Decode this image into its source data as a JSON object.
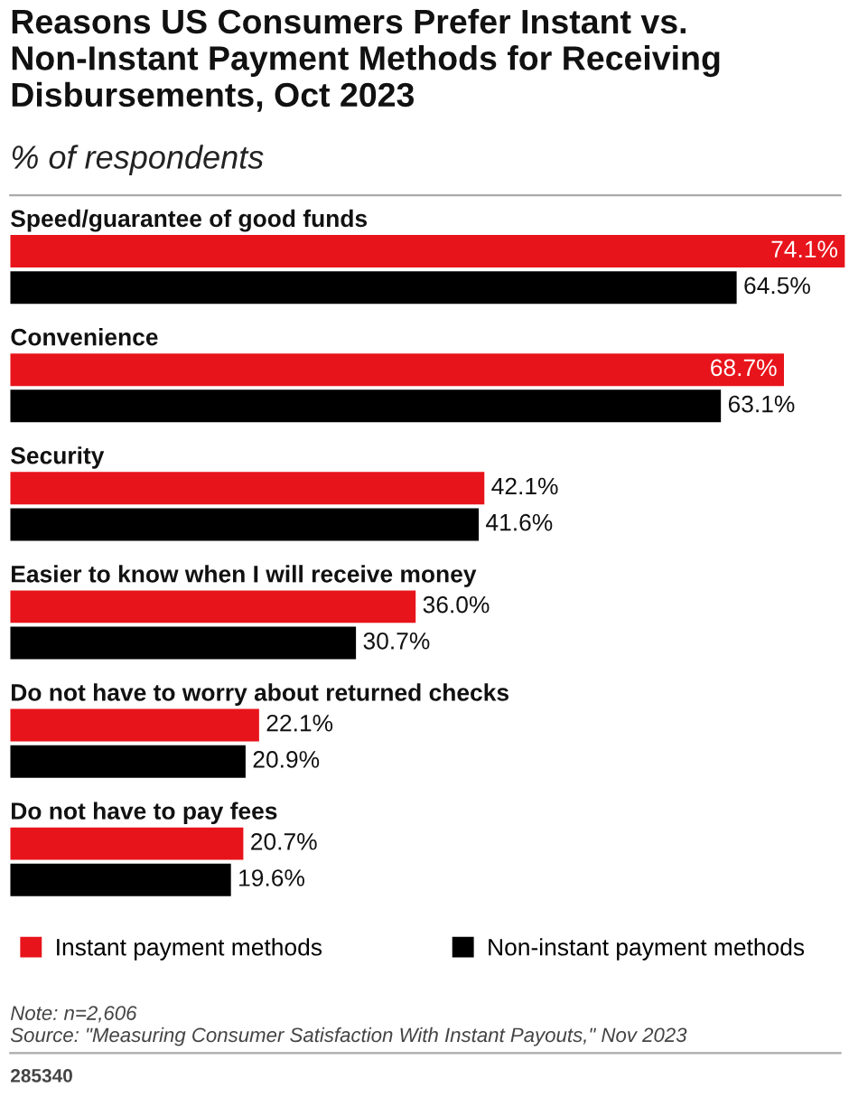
{
  "chart_data": {
    "type": "bar",
    "orientation": "horizontal",
    "title": "Reasons US Consumers Prefer Instant vs. Non-Instant Payment Methods for Receiving Disbursements, Oct 2023",
    "subtitle": "% of respondents",
    "categories": [
      "Speed/guarantee of good funds",
      "Convenience",
      "Security",
      "Easier to know when I will receive money",
      "Do not have to worry about returned checks",
      "Do not have to pay fees"
    ],
    "series": [
      {
        "name": "Instant payment methods",
        "color": "#e8141b",
        "values": [
          74.1,
          68.7,
          42.1,
          36.0,
          22.1,
          20.7
        ],
        "value_labels": [
          "74.1%",
          "68.7%",
          "42.1%",
          "36.0%",
          "22.1%",
          "20.7%"
        ]
      },
      {
        "name": "Non-instant payment methods",
        "color": "#000000",
        "values": [
          64.5,
          63.1,
          41.6,
          30.7,
          20.9,
          19.6
        ],
        "value_labels": [
          "64.5%",
          "63.1%",
          "41.6%",
          "30.7%",
          "20.9%",
          "19.6%"
        ]
      }
    ],
    "legend": "bottom left",
    "annotations": [
      "Note: n=2,606",
      "Source: \"Measuring Consumer Satisfaction With Instant Payouts,\" Nov 2023",
      "285340"
    ]
  }
}
